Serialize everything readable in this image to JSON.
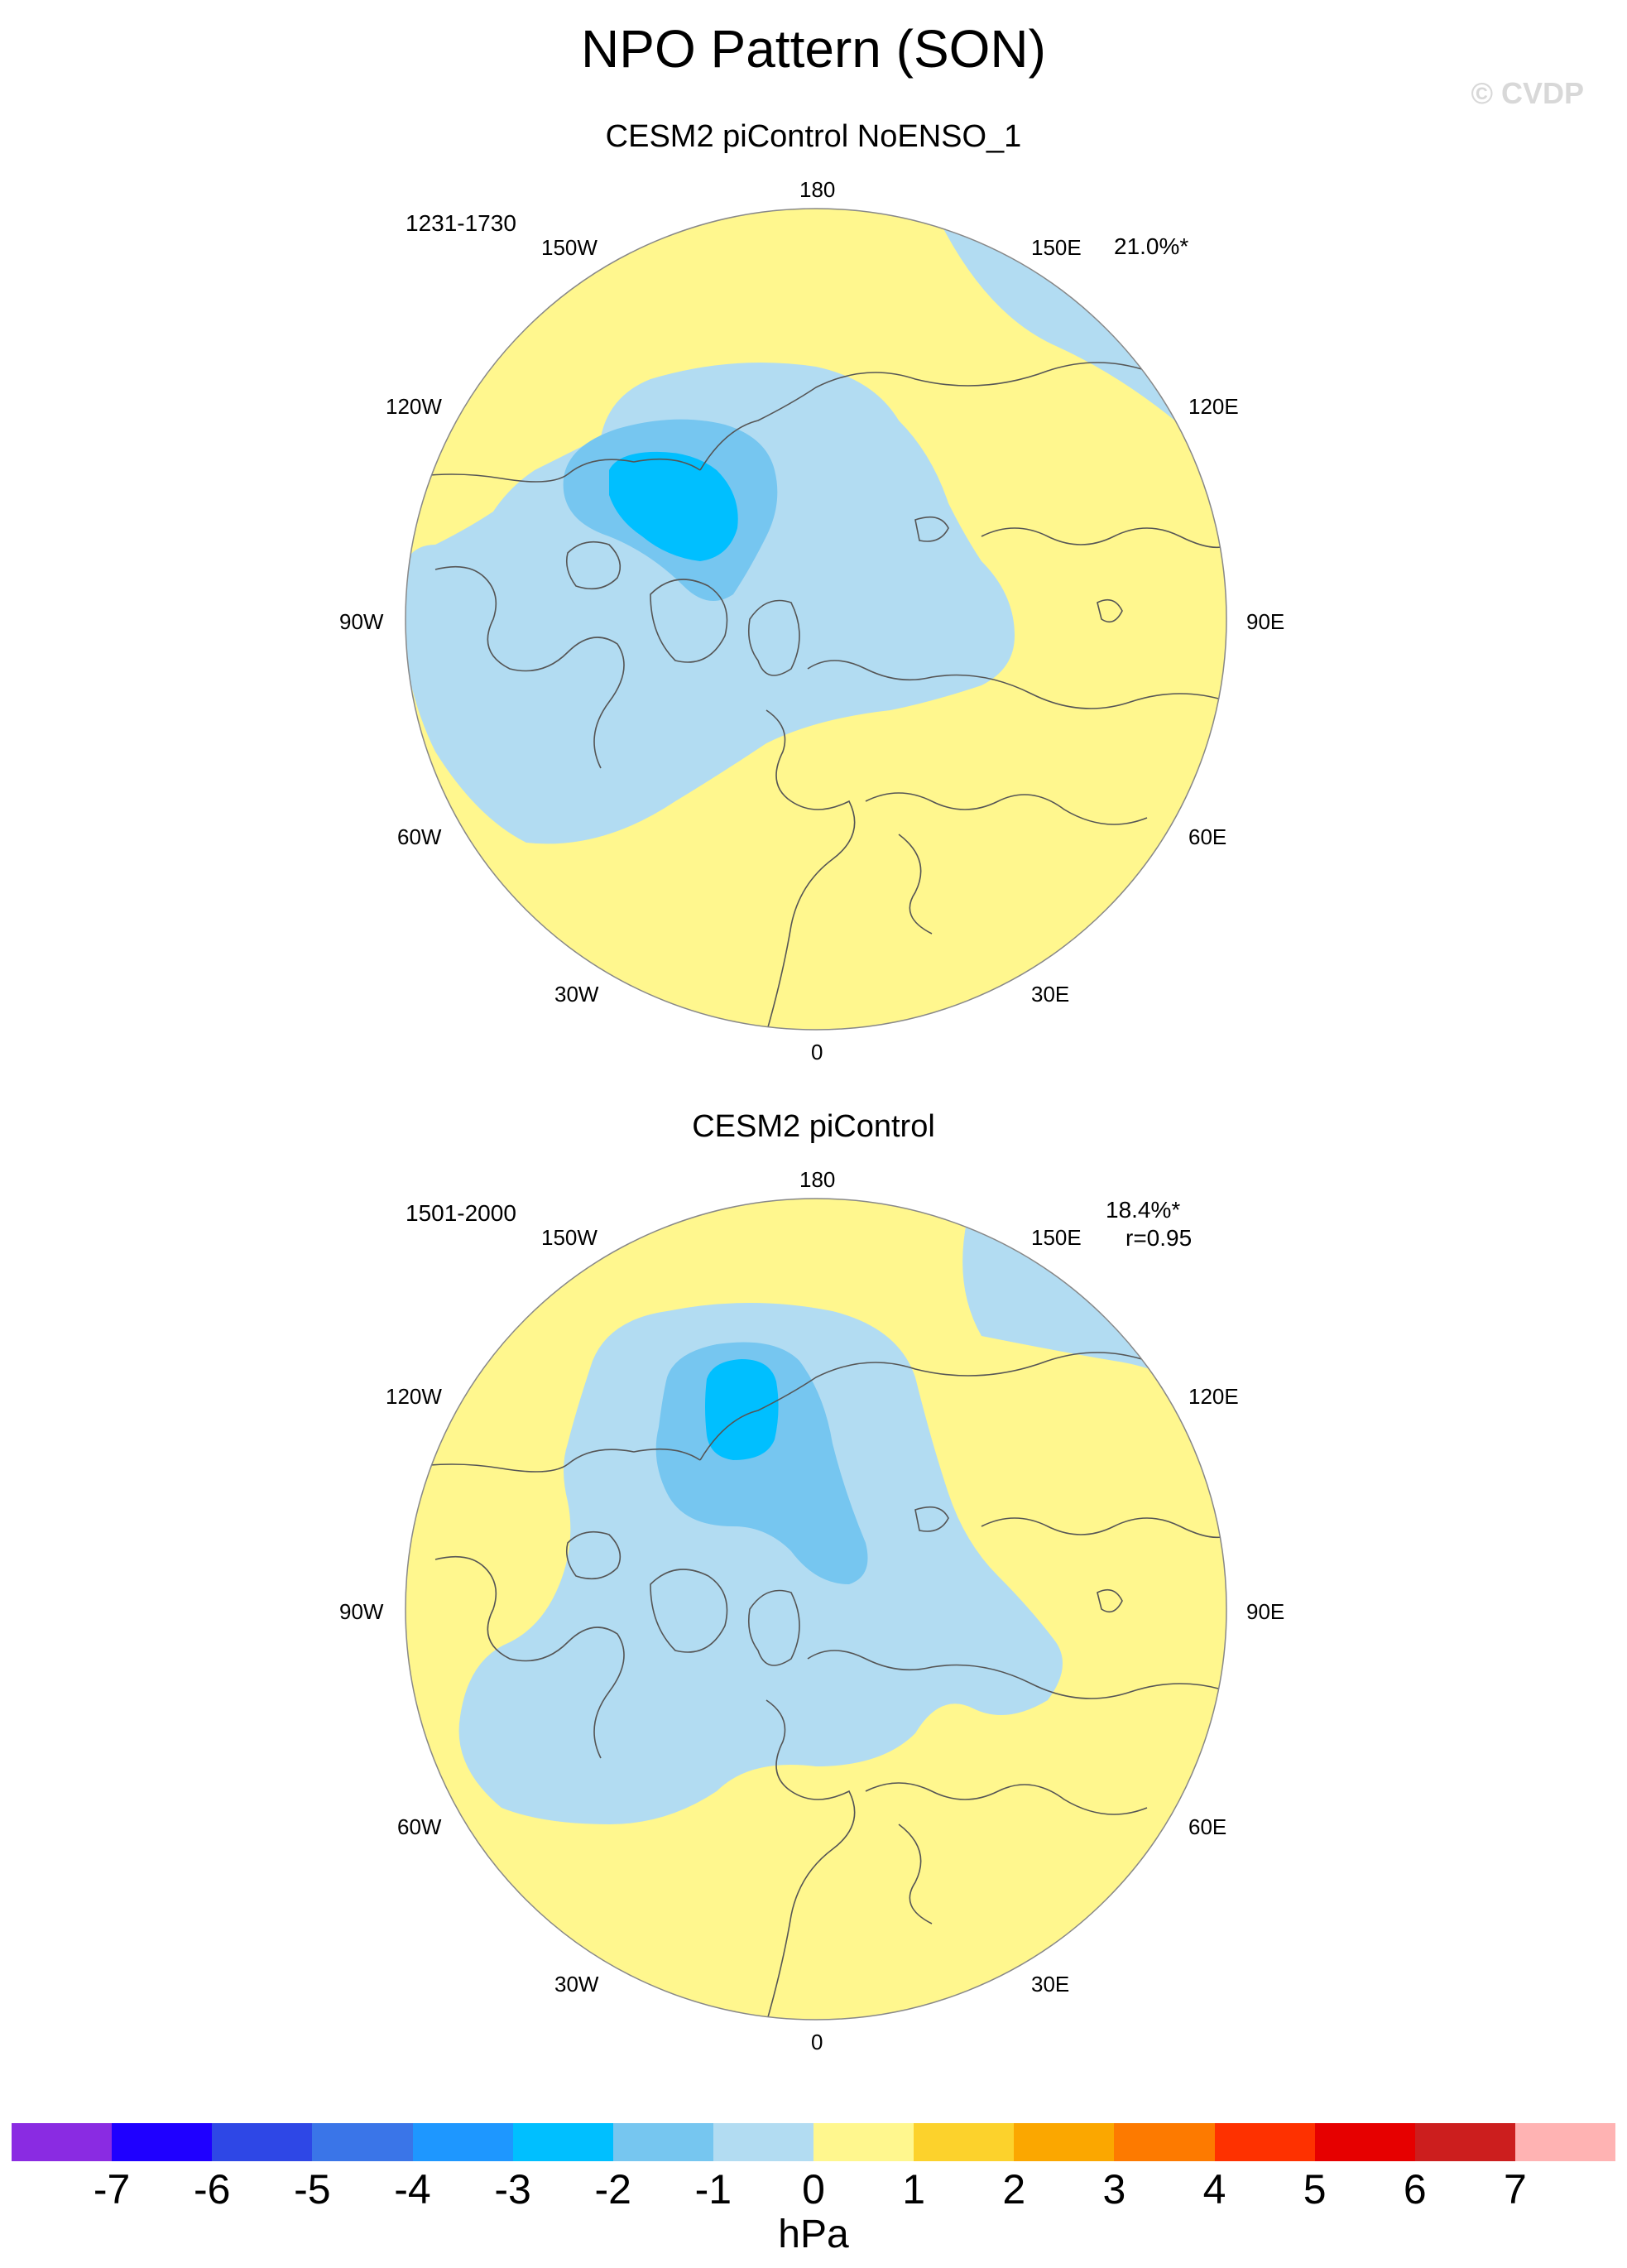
{
  "title": "NPO Pattern (SON)",
  "watermark": "© CVDP",
  "panels": [
    {
      "title": "CESM2 piControl NoENSO_1",
      "years": "1231-1730",
      "variance": "21.0%*",
      "correlation": ""
    },
    {
      "title": "CESM2 piControl",
      "years": "1501-2000",
      "variance": "18.4%*",
      "correlation": "r=0.95"
    }
  ],
  "lon_labels": [
    "180",
    "150E",
    "120E",
    "90E",
    "60E",
    "30E",
    "0",
    "30W",
    "60W",
    "90W",
    "120W",
    "150W"
  ],
  "colorbar": {
    "unit": "hPa",
    "ticks": [
      "-7",
      "-6",
      "-5",
      "-4",
      "-3",
      "-2",
      "-1",
      "0",
      "1",
      "2",
      "3",
      "4",
      "5",
      "6",
      "7"
    ],
    "colors": [
      "#8a2be2",
      "#1f00ff",
      "#2e47e6",
      "#3a75e8",
      "#1e97ff",
      "#00bfff",
      "#76c6f0",
      "#b2dcf2",
      "#fff78e",
      "#fcd22c",
      "#fba700",
      "#fd7a00",
      "#fe3100",
      "#e60000",
      "#cc1e1e",
      "#ffb3b3"
    ]
  },
  "fill_colors": {
    "background": "#fff78e",
    "level_m1": "#b2dcf2",
    "level_m2": "#76c6f0",
    "level_m3": "#00bfff"
  }
}
